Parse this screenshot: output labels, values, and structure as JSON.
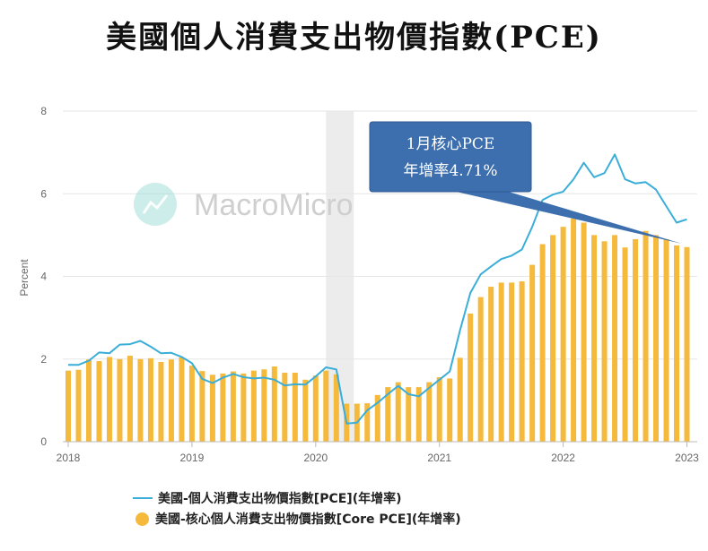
{
  "title": "美國個人消費支出物價指數(PCE)",
  "watermark": "MacroMicro",
  "callout": {
    "line1": "1月核心PCE",
    "line2": "年增率4.71%"
  },
  "colors": {
    "pce": "#3aaed8",
    "core": "#f5b93c",
    "recession": "#ececec",
    "callout": "#3d6fae"
  },
  "chart_data": {
    "type": "bar",
    "ylabel": "Percent",
    "ylim": [
      0,
      8
    ],
    "yticks": [
      0,
      2,
      4,
      6,
      8
    ],
    "xlim": [
      "2018-01",
      "2023-02"
    ],
    "xticks": [
      "2018",
      "2019",
      "2020",
      "2021",
      "2022",
      "2023"
    ],
    "grid": true,
    "legend_position": "bottom",
    "shaded_period": [
      "2020-02",
      "2020-04"
    ],
    "dates": [
      "2018-01",
      "2018-02",
      "2018-03",
      "2018-04",
      "2018-05",
      "2018-06",
      "2018-07",
      "2018-08",
      "2018-09",
      "2018-10",
      "2018-11",
      "2018-12",
      "2019-01",
      "2019-02",
      "2019-03",
      "2019-04",
      "2019-05",
      "2019-06",
      "2019-07",
      "2019-08",
      "2019-09",
      "2019-10",
      "2019-11",
      "2019-12",
      "2020-01",
      "2020-02",
      "2020-03",
      "2020-04",
      "2020-05",
      "2020-06",
      "2020-07",
      "2020-08",
      "2020-09",
      "2020-10",
      "2020-11",
      "2020-12",
      "2021-01",
      "2021-02",
      "2021-03",
      "2021-04",
      "2021-05",
      "2021-06",
      "2021-07",
      "2021-08",
      "2021-09",
      "2021-10",
      "2021-11",
      "2021-12",
      "2022-01",
      "2022-02",
      "2022-03",
      "2022-04",
      "2022-05",
      "2022-06",
      "2022-07",
      "2022-08",
      "2022-09",
      "2022-10",
      "2022-11",
      "2022-12",
      "2023-01"
    ],
    "series": [
      {
        "name": "美國-核心個人消費支出物價指數[Core PCE](年增率)",
        "kind": "bar",
        "values": [
          1.72,
          1.74,
          1.99,
          1.95,
          2.05,
          2.0,
          2.08,
          2.0,
          2.02,
          1.93,
          1.99,
          2.04,
          1.84,
          1.71,
          1.62,
          1.65,
          1.7,
          1.65,
          1.72,
          1.75,
          1.82,
          1.67,
          1.67,
          1.5,
          1.6,
          1.72,
          1.63,
          0.92,
          0.92,
          0.93,
          1.13,
          1.32,
          1.44,
          1.32,
          1.32,
          1.44,
          1.56,
          1.53,
          2.03,
          3.1,
          3.5,
          3.75,
          3.85,
          3.85,
          3.88,
          4.28,
          4.78,
          5.0,
          5.2,
          5.4,
          5.3,
          5.0,
          4.85,
          5.0,
          4.7,
          4.9,
          5.1,
          5.0,
          4.9,
          4.75,
          4.71
        ]
      },
      {
        "name": "美國-個人消費支出物價指數[PCE](年增率)",
        "kind": "line",
        "values": [
          1.86,
          1.86,
          1.96,
          2.16,
          2.14,
          2.35,
          2.36,
          2.44,
          2.3,
          2.14,
          2.15,
          2.05,
          1.9,
          1.52,
          1.42,
          1.55,
          1.64,
          1.56,
          1.53,
          1.55,
          1.5,
          1.36,
          1.39,
          1.38,
          1.58,
          1.8,
          1.75,
          0.44,
          0.46,
          0.76,
          0.94,
          1.15,
          1.35,
          1.15,
          1.1,
          1.3,
          1.5,
          1.7,
          2.7,
          3.6,
          4.05,
          4.24,
          4.42,
          4.5,
          4.65,
          5.2,
          5.85,
          5.98,
          6.05,
          6.35,
          6.75,
          6.4,
          6.5,
          6.95,
          6.35,
          6.25,
          6.28,
          6.1,
          5.7,
          5.3,
          5.38
        ]
      }
    ]
  }
}
